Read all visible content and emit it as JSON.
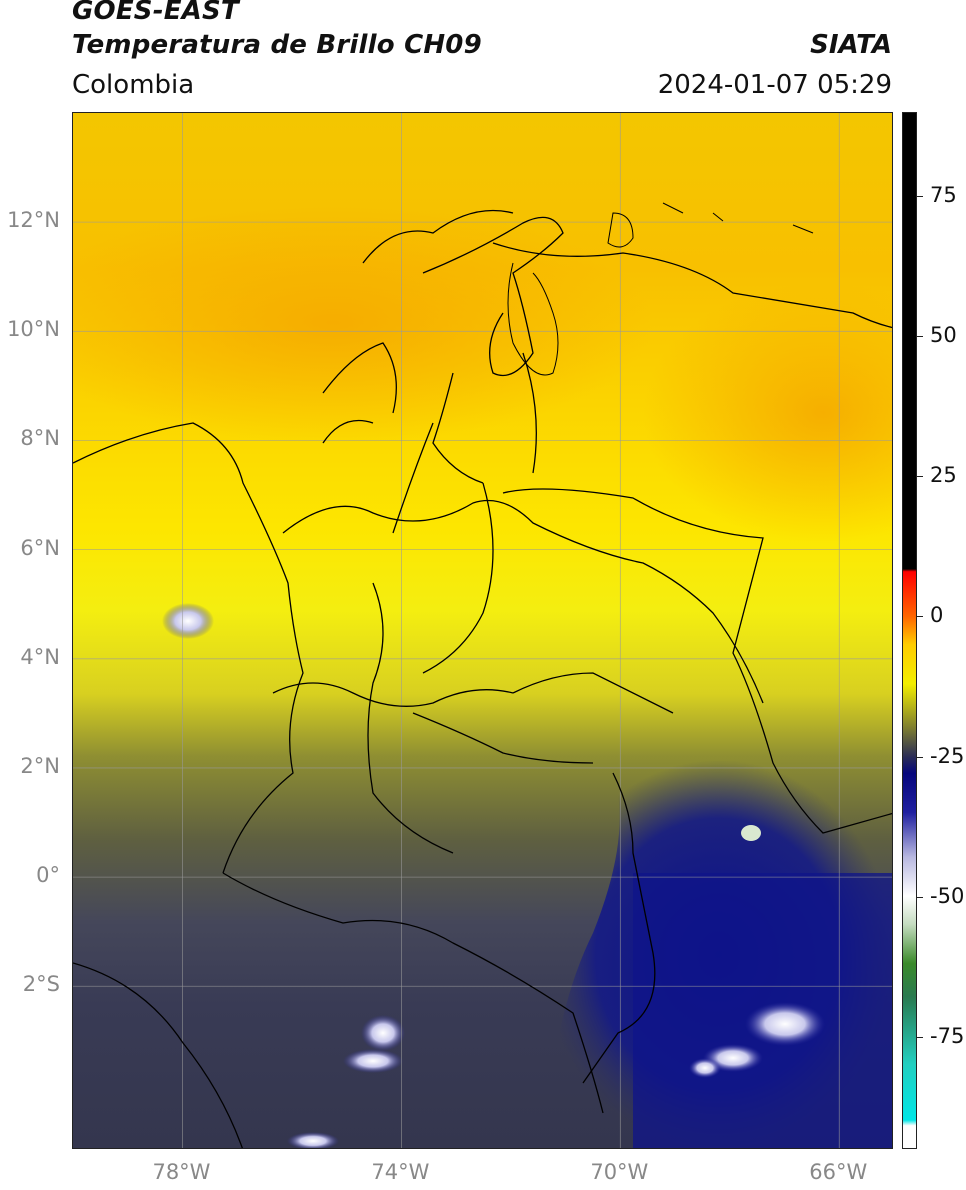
{
  "header": {
    "satellite": "GOES-EAST",
    "product": "Temperatura de Brillo CH09",
    "organization": "SIATA",
    "region": "Colombia",
    "datetime": "2024-01-07 05:29"
  },
  "map": {
    "lat_labels": [
      "12°N",
      "10°N",
      "8°N",
      "6°N",
      "4°N",
      "2°N",
      "0°",
      "2°S"
    ],
    "lon_labels": [
      "78°W",
      "74°W",
      "70°W",
      "66°W"
    ],
    "lat_values": [
      12,
      10,
      8,
      6,
      4,
      2,
      0,
      -2
    ],
    "lon_values": [
      -78,
      -74,
      -70,
      -66
    ],
    "extent": {
      "lon_min": -80,
      "lon_max": -65,
      "lat_min": -5,
      "lat_max": 14
    },
    "colors": {
      "warm_orange": "#f6b400",
      "yellow": "#fde800",
      "olive": "#8a8a2a",
      "gray": "#3c3f52",
      "navy": "#1a1f7a",
      "deep_blue": "#0b1189",
      "white_cloud": "#f4f4fb",
      "border": "#000000",
      "grid": "#9a9a9a"
    }
  },
  "colorbar": {
    "tick_labels": [
      "75",
      "50",
      "25",
      "0",
      "-25",
      "-50",
      "-75"
    ],
    "tick_values": [
      75,
      50,
      25,
      0,
      -25,
      -50,
      -75
    ],
    "range": [
      -95,
      90
    ],
    "stops": [
      {
        "value": 90,
        "color": "#000000"
      },
      {
        "value": 8.5,
        "color": "#000000"
      },
      {
        "value": 8,
        "color": "#ff0000"
      },
      {
        "value": 0,
        "color": "#ff6600"
      },
      {
        "value": -5,
        "color": "#ffcc00"
      },
      {
        "value": -12,
        "color": "#f2ee00"
      },
      {
        "value": -20,
        "color": "#7c7c30"
      },
      {
        "value": -25,
        "color": "#2b2d55"
      },
      {
        "value": -28,
        "color": "#06067c"
      },
      {
        "value": -35,
        "color": "#2020a0"
      },
      {
        "value": -43,
        "color": "#b8b8e0"
      },
      {
        "value": -50,
        "color": "#ffffff"
      },
      {
        "value": -55,
        "color": "#c5dcc0"
      },
      {
        "value": -62,
        "color": "#3a8a2a"
      },
      {
        "value": -68,
        "color": "#2a7a50"
      },
      {
        "value": -80,
        "color": "#22cfc0"
      },
      {
        "value": -90,
        "color": "#00e6e6"
      },
      {
        "value": -91,
        "color": "#ffffff"
      },
      {
        "value": -95,
        "color": "#ffffff"
      }
    ]
  }
}
